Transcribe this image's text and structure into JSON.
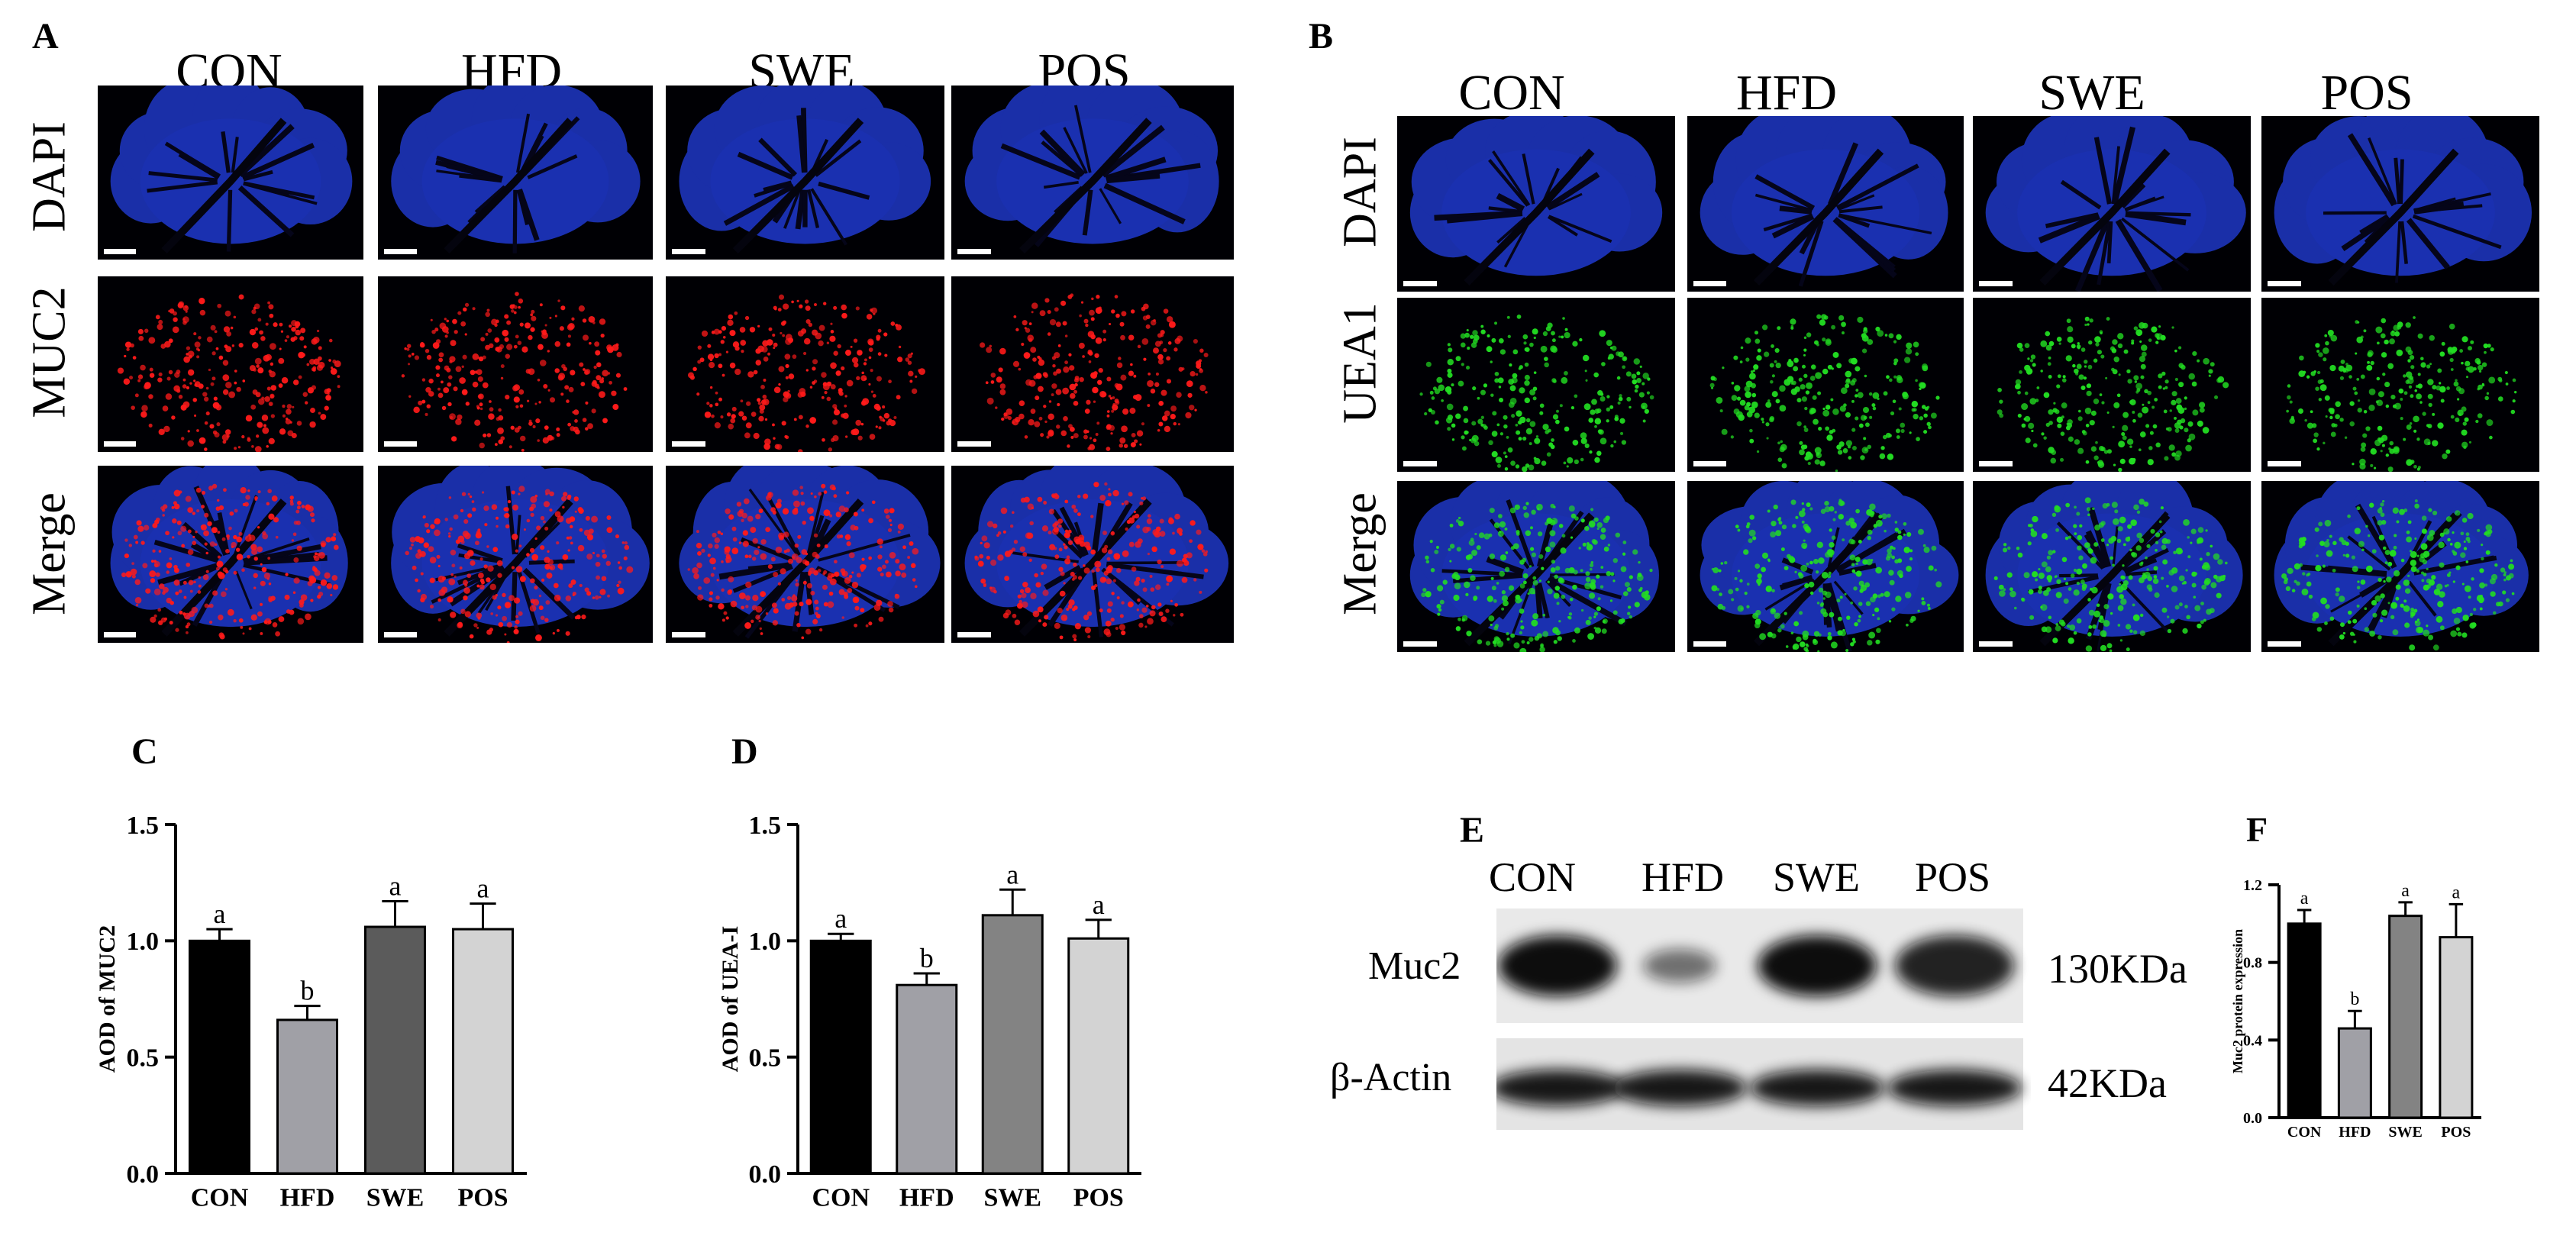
{
  "panels": {
    "A": {
      "letter": "A",
      "columns": [
        "CON",
        "HFD",
        "SWE",
        "POS"
      ],
      "rows": [
        "DAPI",
        "MUC2",
        "Merge"
      ],
      "marker_color": "#ff1a1a"
    },
    "B": {
      "letter": "B",
      "columns": [
        "CON",
        "HFD",
        "SWE",
        "POS"
      ],
      "rows": [
        "DAPI",
        "UEA1",
        "Merge"
      ],
      "marker_color": "#22dd22"
    },
    "E": {
      "letter": "E",
      "lanes": [
        "CON",
        "HFD",
        "SWE",
        "POS"
      ],
      "bands": [
        {
          "name": "Muc2",
          "size": "130KDa",
          "intensities": [
            1.0,
            0.55,
            1.0,
            0.9
          ]
        },
        {
          "name": "β-Actin",
          "size": "42KDa",
          "intensities": [
            0.95,
            0.95,
            0.95,
            0.95
          ]
        }
      ]
    }
  },
  "chart_data": [
    {
      "panel": "C",
      "type": "bar",
      "categories": [
        "CON",
        "HFD",
        "SWE",
        "POS"
      ],
      "values": [
        1.0,
        0.66,
        1.06,
        1.05
      ],
      "errors": [
        0.05,
        0.06,
        0.11,
        0.11
      ],
      "significance": [
        "a",
        "b",
        "a",
        "a"
      ],
      "colors": [
        "#000000",
        "#a0a0a6",
        "#5b5b5b",
        "#d3d3d3"
      ],
      "ylabel": "AOD of MUC2",
      "ylim": [
        0,
        1.5
      ],
      "yticks": [
        "0.0",
        "0.5",
        "1.0",
        "1.5"
      ]
    },
    {
      "panel": "D",
      "type": "bar",
      "categories": [
        "CON",
        "HFD",
        "SWE",
        "POS"
      ],
      "values": [
        1.0,
        0.81,
        1.11,
        1.01
      ],
      "errors": [
        0.03,
        0.05,
        0.11,
        0.08
      ],
      "significance": [
        "a",
        "b",
        "a",
        "a"
      ],
      "colors": [
        "#000000",
        "#a0a0a6",
        "#838383",
        "#d3d3d3"
      ],
      "ylabel": "AOD of UEA-I",
      "ylim": [
        0,
        1.5
      ],
      "yticks": [
        "0.0",
        "0.5",
        "1.0",
        "1.5"
      ]
    },
    {
      "panel": "F",
      "type": "bar",
      "categories": [
        "CON",
        "HFD",
        "SWE",
        "POS"
      ],
      "values": [
        1.0,
        0.46,
        1.04,
        0.93
      ],
      "errors": [
        0.07,
        0.09,
        0.07,
        0.17
      ],
      "significance": [
        "a",
        "b",
        "a",
        "a"
      ],
      "colors": [
        "#000000",
        "#a0a0a6",
        "#838383",
        "#d3d3d3"
      ],
      "ylabel": "Muc2 protein expression",
      "ylim": [
        0,
        1.2
      ],
      "yticks": [
        "0.0",
        "0.4",
        "0.8",
        "1.2"
      ]
    }
  ]
}
